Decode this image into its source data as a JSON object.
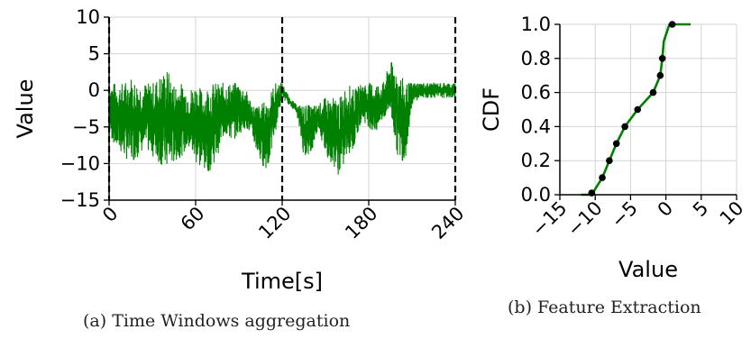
{
  "chart_data": [
    {
      "type": "line",
      "caption": "(a) Time Windows aggregation",
      "xlabel": "Time[s]",
      "ylabel": "Value",
      "xlim": [
        0,
        240
      ],
      "ylim": [
        -15,
        10
      ],
      "xticks": [
        "0",
        "60",
        "120",
        "180",
        "240"
      ],
      "yticks": [
        "10",
        "5",
        "0",
        "−5",
        "−10",
        "−15"
      ],
      "grid": true,
      "line_color": "#008000",
      "window_boundaries": [
        0,
        120,
        240
      ],
      "series": [
        {
          "x": [
            0,
            5,
            10,
            15,
            20,
            25,
            30,
            35,
            40,
            45,
            50,
            55,
            60,
            65,
            70,
            75,
            80,
            85,
            90,
            95,
            100,
            105,
            110,
            115,
            120,
            125,
            130,
            135,
            140,
            145,
            150,
            155,
            160,
            165,
            170,
            175,
            180,
            185,
            190,
            195,
            200,
            205,
            210,
            215,
            220,
            225,
            230,
            235,
            240
          ],
          "upper": [
            1,
            1,
            1,
            2,
            1,
            1,
            1,
            2,
            3,
            1,
            1,
            0,
            1,
            0,
            1,
            1,
            1,
            1,
            1,
            0,
            -2,
            -2,
            -1,
            1,
            1,
            -1,
            -2,
            -2,
            -2,
            -2,
            -1,
            -1,
            -1,
            1,
            0,
            1,
            1,
            1,
            1,
            4,
            3,
            1,
            1,
            1,
            1,
            1,
            1,
            1,
            1
          ],
          "lower": [
            -6,
            -8,
            -9,
            -10,
            -9,
            -8,
            -9,
            -10,
            -11,
            -10,
            -9,
            -8,
            -10,
            -11,
            -11,
            -9,
            -6,
            -7,
            -6,
            -5,
            -7,
            -10,
            -11,
            -6,
            -1,
            -2,
            -3,
            -9,
            -9,
            -5,
            -9,
            -10,
            -12,
            -9,
            -8,
            -4,
            -5,
            -6,
            -4,
            -3,
            -9,
            -10,
            -2,
            -1,
            -1,
            -1,
            -1,
            -1,
            -1
          ]
        }
      ]
    },
    {
      "type": "line",
      "caption": "(b) Feature Extraction",
      "xlabel": "Value",
      "ylabel": "CDF",
      "xlim": [
        -15,
        10
      ],
      "ylim": [
        0,
        1
      ],
      "xticks": [
        "−15",
        "−10",
        "−5",
        "0",
        "5",
        "10"
      ],
      "yticks": [
        "1.0",
        "0.8",
        "0.6",
        "0.4",
        "0.2",
        "0.0"
      ],
      "grid": true,
      "line_color": "#008000",
      "marker_color": "#000000",
      "series": [
        {
          "x": [
            -12,
            -10.5,
            -9,
            -8,
            -7,
            -5.8,
            -4,
            -1.8,
            -0.8,
            -0.5,
            -0.3,
            0.1,
            0.5,
            0.9,
            1.5,
            3.5
          ],
          "y": [
            0,
            0,
            0.1,
            0.2,
            0.3,
            0.4,
            0.5,
            0.6,
            0.7,
            0.8,
            0.9,
            0.95,
            1.0,
            1.0,
            1.0,
            1.0
          ]
        }
      ],
      "markers": {
        "x": [
          -10.5,
          -9,
          -8,
          -7,
          -5.8,
          -4,
          -1.8,
          -0.8,
          -0.5,
          0.9
        ],
        "y": [
          0.01,
          0.1,
          0.2,
          0.3,
          0.4,
          0.5,
          0.6,
          0.7,
          0.8,
          1.0
        ]
      }
    }
  ]
}
